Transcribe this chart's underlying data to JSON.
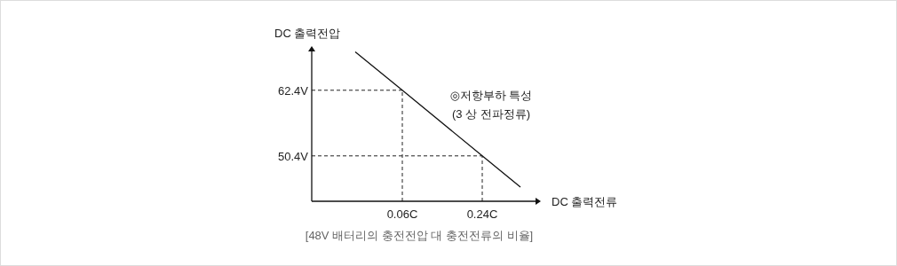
{
  "chart_data": {
    "type": "line",
    "xlabel": "DC 출력전류",
    "ylabel": "DC 출력전압",
    "x": [
      -0.046,
      0.06,
      0.24,
      0.326
    ],
    "series": [
      {
        "color": "#111111",
        "values": [
          69.4,
          62.4,
          50.4,
          44.7
        ]
      }
    ],
    "xlim": [
      -0.144,
      0.36
    ],
    "ylim": [
      42.1,
      69.5
    ],
    "xticks": [
      {
        "value": 0.06,
        "label": "0.06C"
      },
      {
        "value": 0.24,
        "label": "0.24C"
      }
    ],
    "yticks": [
      {
        "value": 50.4,
        "label": "50.4V"
      },
      {
        "value": 62.4,
        "label": "62.4V"
      }
    ],
    "ref_lines": [
      {
        "axis": "x",
        "value": 0.06,
        "color": "#222222",
        "line_style": "dashed"
      },
      {
        "axis": "x",
        "value": 0.24,
        "color": "#222222",
        "line_style": "dashed"
      },
      {
        "axis": "y",
        "value": 62.4,
        "color": "#222222",
        "line_style": "dashed"
      },
      {
        "axis": "y",
        "value": 50.4,
        "color": "#222222",
        "line_style": "dashed"
      }
    ],
    "annotations": [
      "◎저항부하 특성",
      "(3 상 전파정류)",
      "[48V 배터리의 충전전압 대 충전전류의 비율]"
    ],
    "grid": false,
    "marker": "none",
    "line_style": "solid"
  }
}
